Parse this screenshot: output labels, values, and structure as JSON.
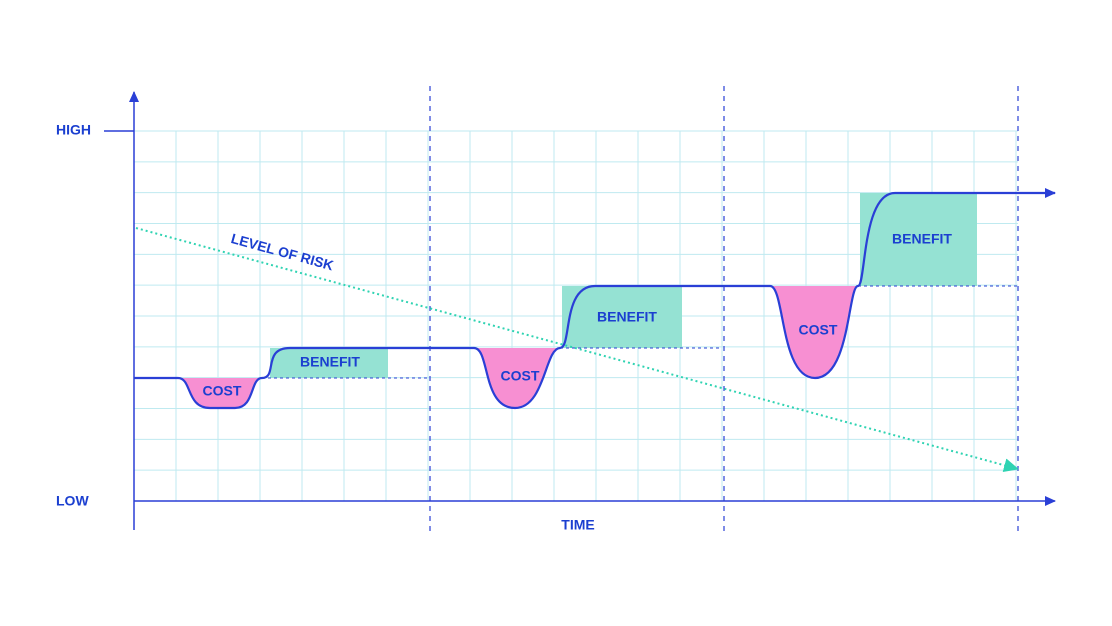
{
  "axis": {
    "high_label": "HIGH",
    "low_label": "LOW",
    "x_label": "TIME"
  },
  "risk_label": "LEVEL OF RISK",
  "stages": [
    {
      "cost_label": "COST",
      "benefit_label": "BENEFIT"
    },
    {
      "cost_label": "COST",
      "benefit_label": "BENEFIT"
    },
    {
      "cost_label": "COST",
      "benefit_label": "BENEFIT"
    }
  ]
}
